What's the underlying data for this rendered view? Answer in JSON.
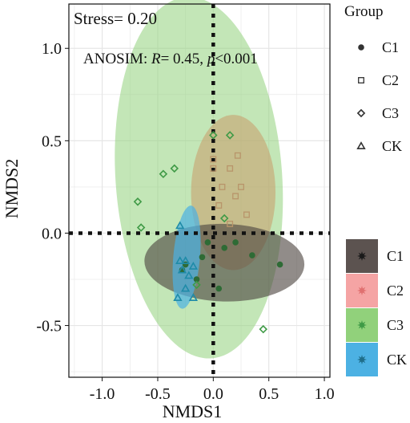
{
  "chart_data": {
    "type": "scatter",
    "xlabel": "NMDS1",
    "ylabel": "NMDS2",
    "xlim": [
      -1.3,
      1.05
    ],
    "ylim": [
      -0.78,
      1.24
    ],
    "xticks": [
      -1.0,
      -0.5,
      0.0,
      0.5,
      1.0
    ],
    "xtick_labels": [
      "-1.0",
      "-0.5",
      "0.0",
      "0.5",
      "1.0"
    ],
    "yticks": [
      -0.5,
      0.0,
      0.5,
      1.0
    ],
    "ytick_labels": [
      "-0.5",
      "0.0",
      "0.5",
      "1.0"
    ],
    "grid": true,
    "annotations": {
      "stress": "Stress= 0.20",
      "anosim_prefix": "ANOSIM: ",
      "anosim_R": "R",
      "anosim_mid": "= 0.45, ",
      "anosim_p": "p",
      "anosim_suffix": "<0.001"
    },
    "series": [
      {
        "name": "C1",
        "shape": "circle",
        "color": "#2e6b35",
        "points": [
          [
            -0.25,
            -0.17
          ],
          [
            -0.1,
            -0.13
          ],
          [
            -0.05,
            -0.05
          ],
          [
            0.1,
            -0.08
          ],
          [
            0.2,
            -0.05
          ],
          [
            0.35,
            -0.12
          ],
          [
            0.6,
            -0.17
          ],
          [
            -0.15,
            -0.25
          ],
          [
            0.05,
            -0.3
          ],
          [
            -0.28,
            -0.2
          ]
        ]
      },
      {
        "name": "C2",
        "shape": "square",
        "color": "#b8956a",
        "points": [
          [
            0.0,
            0.4
          ],
          [
            0.0,
            0.35
          ],
          [
            0.15,
            0.35
          ],
          [
            0.25,
            0.25
          ],
          [
            0.3,
            0.1
          ],
          [
            0.05,
            0.15
          ],
          [
            0.15,
            0.05
          ],
          [
            0.22,
            0.42
          ],
          [
            0.08,
            0.25
          ],
          [
            0.2,
            0.2
          ]
        ]
      },
      {
        "name": "C3",
        "shape": "diamond",
        "color": "#3f9a46",
        "points": [
          [
            0.0,
            0.53
          ],
          [
            0.15,
            0.53
          ],
          [
            -0.35,
            0.35
          ],
          [
            -0.45,
            0.32
          ],
          [
            -0.68,
            0.17
          ],
          [
            -0.65,
            0.03
          ],
          [
            0.45,
            -0.52
          ],
          [
            -0.15,
            -0.28
          ],
          [
            0.1,
            0.08
          ]
        ]
      },
      {
        "name": "CK",
        "shape": "triangle",
        "color": "#1f8ba8",
        "points": [
          [
            -0.3,
            0.04
          ],
          [
            -0.3,
            -0.15
          ],
          [
            -0.25,
            -0.15
          ],
          [
            -0.18,
            -0.18
          ],
          [
            -0.28,
            -0.2
          ],
          [
            -0.22,
            -0.23
          ],
          [
            -0.25,
            -0.3
          ],
          [
            -0.32,
            -0.35
          ],
          [
            -0.18,
            -0.35
          ]
        ]
      }
    ],
    "ellipses": [
      {
        "group": "C3",
        "cx": -0.13,
        "cy": 0.3,
        "rx": 0.75,
        "ry": 0.98,
        "angle": -4,
        "fill": "#91d17b",
        "opacity": 0.55
      },
      {
        "group": "C2",
        "cx": 0.18,
        "cy": 0.22,
        "rx": 0.38,
        "ry": 0.42,
        "angle": 0,
        "fill": "#c89a6a",
        "opacity": 0.55
      },
      {
        "group": "C1",
        "cx": 0.1,
        "cy": -0.16,
        "rx": 0.72,
        "ry": 0.21,
        "angle": 1.5,
        "fill": "#4e4540",
        "opacity": 0.62
      },
      {
        "group": "CK",
        "cx": -0.24,
        "cy": -0.13,
        "rx": 0.12,
        "ry": 0.28,
        "angle": 5,
        "fill": "#4cb1e3",
        "opacity": 0.7
      }
    ],
    "legend_group": {
      "title": "Group",
      "items": [
        {
          "label": "C1",
          "shape": "circle"
        },
        {
          "label": "C2",
          "shape": "square"
        },
        {
          "label": "C3",
          "shape": "diamond"
        },
        {
          "label": "CK",
          "shape": "triangle"
        }
      ]
    },
    "legend_fill": {
      "items": [
        {
          "label": "C1",
          "fill": "#5c5350",
          "star": "#1a1a1a"
        },
        {
          "label": "C2",
          "fill": "#f5a4a4",
          "star": "#e07070"
        },
        {
          "label": "C3",
          "fill": "#91d17b",
          "star": "#3f9a46"
        },
        {
          "label": "CK",
          "fill": "#4cb1e3",
          "star": "#1f6e8a"
        }
      ]
    }
  }
}
